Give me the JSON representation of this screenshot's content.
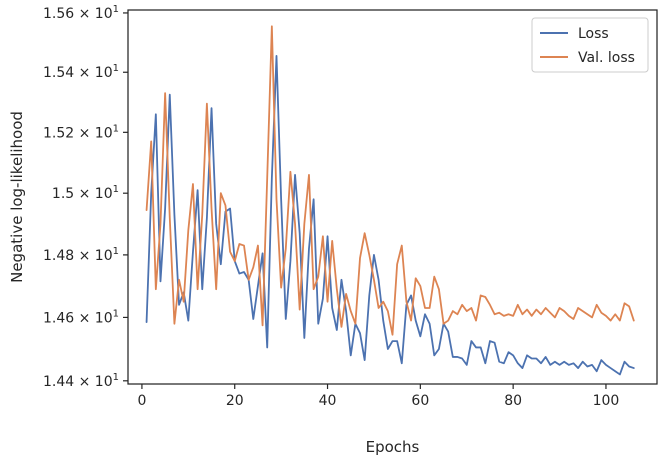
{
  "chart_data": {
    "type": "line",
    "title": "",
    "xlabel": "Epochs",
    "ylabel": "Negative log-likelihood",
    "yscale": "log",
    "xlim": [
      -3,
      111
    ],
    "ylim": [
      14.39,
      15.61
    ],
    "grid": false,
    "legend_position": "top-right",
    "x_ticks": [
      0,
      20,
      40,
      60,
      80,
      100
    ],
    "x_tick_labels": [
      "0",
      "20",
      "40",
      "60",
      "80",
      "100"
    ],
    "y_ticks": [
      14.4,
      14.6,
      14.8,
      15.0,
      15.2,
      15.4,
      15.6
    ],
    "y_tick_labels": [
      {
        "mantissa": "1.44",
        "base": "10",
        "exp": "1"
      },
      {
        "mantissa": "1.46",
        "base": "10",
        "exp": "1"
      },
      {
        "mantissa": "1.48",
        "base": "10",
        "exp": "1"
      },
      {
        "mantissa": "1.5",
        "base": "10",
        "exp": "1"
      },
      {
        "mantissa": "1.52",
        "base": "10",
        "exp": "1"
      },
      {
        "mantissa": "1.54",
        "base": "10",
        "exp": "1"
      },
      {
        "mantissa": "1.56",
        "base": "10",
        "exp": "1"
      }
    ],
    "x": [
      1,
      2,
      3,
      4,
      5,
      6,
      7,
      8,
      9,
      10,
      11,
      12,
      13,
      14,
      15,
      16,
      17,
      18,
      19,
      20,
      21,
      22,
      23,
      24,
      25,
      26,
      27,
      28,
      29,
      30,
      31,
      32,
      33,
      34,
      35,
      36,
      37,
      38,
      39,
      40,
      41,
      42,
      43,
      44,
      45,
      46,
      47,
      48,
      49,
      50,
      51,
      52,
      53,
      54,
      55,
      56,
      57,
      58,
      59,
      60,
      61,
      62,
      63,
      64,
      65,
      66,
      67,
      68,
      69,
      70,
      71,
      72,
      73,
      74,
      75,
      76,
      77,
      78,
      79,
      80,
      81,
      82,
      83,
      84,
      85,
      86,
      87,
      88,
      89,
      90,
      91,
      92,
      93,
      94,
      95,
      96,
      97,
      98,
      99,
      100,
      101,
      102,
      103,
      104,
      105,
      106
    ],
    "series": [
      {
        "name": "Loss",
        "color": "#4c72b0",
        "values": [
          14.585,
          15.0,
          15.26,
          14.715,
          14.95,
          15.325,
          14.93,
          14.64,
          14.68,
          14.59,
          14.81,
          15.01,
          14.69,
          14.92,
          15.28,
          14.9,
          14.77,
          14.94,
          14.95,
          14.78,
          14.74,
          14.745,
          14.72,
          14.595,
          14.7,
          14.805,
          14.505,
          15.05,
          15.455,
          14.98,
          14.595,
          14.78,
          15.06,
          14.87,
          14.535,
          14.82,
          14.98,
          14.58,
          14.66,
          14.86,
          14.63,
          14.56,
          14.72,
          14.62,
          14.48,
          14.58,
          14.55,
          14.465,
          14.67,
          14.8,
          14.72,
          14.59,
          14.5,
          14.525,
          14.525,
          14.455,
          14.64,
          14.67,
          14.59,
          14.54,
          14.61,
          14.58,
          14.48,
          14.5,
          14.58,
          14.555,
          14.475,
          14.475,
          14.47,
          14.45,
          14.525,
          14.505,
          14.505,
          14.455,
          14.525,
          14.52,
          14.46,
          14.455,
          14.49,
          14.48,
          14.455,
          14.44,
          14.48,
          14.47,
          14.47,
          14.455,
          14.475,
          14.45,
          14.46,
          14.45,
          14.46,
          14.45,
          14.455,
          14.44,
          14.46,
          14.445,
          14.45,
          14.43,
          14.465,
          14.45,
          14.44,
          14.43,
          14.42,
          14.46,
          14.445,
          14.44
        ]
      },
      {
        "name": "Val. loss",
        "color": "#dd8452",
        "values": [
          14.945,
          15.17,
          14.69,
          14.9,
          15.33,
          14.92,
          14.58,
          14.72,
          14.65,
          14.88,
          15.03,
          14.69,
          14.93,
          15.295,
          14.95,
          14.69,
          15.0,
          14.96,
          14.81,
          14.78,
          14.835,
          14.83,
          14.72,
          14.76,
          14.83,
          14.575,
          15.05,
          15.555,
          14.98,
          14.695,
          14.82,
          15.07,
          14.9,
          14.625,
          14.9,
          15.06,
          14.69,
          14.73,
          14.86,
          14.65,
          14.845,
          14.69,
          14.57,
          14.675,
          14.62,
          14.58,
          14.79,
          14.87,
          14.8,
          14.72,
          14.63,
          14.65,
          14.62,
          14.545,
          14.77,
          14.83,
          14.65,
          14.59,
          14.725,
          14.7,
          14.63,
          14.63,
          14.73,
          14.69,
          14.58,
          14.59,
          14.62,
          14.61,
          14.64,
          14.62,
          14.63,
          14.59,
          14.67,
          14.665,
          14.64,
          14.61,
          14.615,
          14.605,
          14.61,
          14.605,
          14.64,
          14.61,
          14.625,
          14.605,
          14.625,
          14.61,
          14.63,
          14.615,
          14.6,
          14.63,
          14.62,
          14.605,
          14.595,
          14.63,
          14.62,
          14.61,
          14.6,
          14.64,
          14.615,
          14.605,
          14.59,
          14.61,
          14.59,
          14.645,
          14.635,
          14.59
        ]
      }
    ]
  }
}
